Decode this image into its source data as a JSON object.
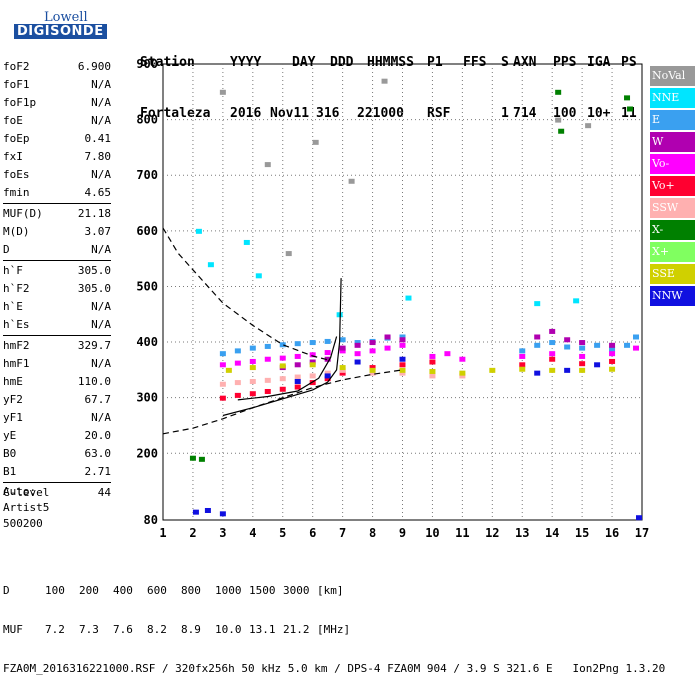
{
  "logo": {
    "line1": "Lowell",
    "line2": "DIGISONDE"
  },
  "header": {
    "labels": [
      "Station",
      "YYYY",
      "DAY",
      "DDD",
      "HHMMSS",
      "P1",
      "FFS",
      "S",
      "AXN",
      "PPS",
      "IGA",
      "PS"
    ],
    "values": [
      "Fortaleza",
      "2016",
      "Nov11",
      "316",
      "221000",
      "RSF",
      "1",
      "714",
      "100",
      "10+",
      "11"
    ]
  },
  "params": [
    {
      "key": "foF2",
      "value": "6.900"
    },
    {
      "key": "foF1",
      "value": "N/A"
    },
    {
      "key": "foF1p",
      "value": "N/A"
    },
    {
      "key": "foE",
      "value": "N/A"
    },
    {
      "key": "foEp",
      "value": "0.41"
    },
    {
      "key": "fxI",
      "value": "7.80"
    },
    {
      "key": "foEs",
      "value": "N/A"
    },
    {
      "key": "fmin",
      "value": "4.65"
    },
    {
      "key": "MUF(D)",
      "value": "21.18",
      "sep": true
    },
    {
      "key": "M(D)",
      "value": "3.07"
    },
    {
      "key": "D",
      "value": "N/A"
    },
    {
      "key": "h`F",
      "value": "305.0",
      "sep": true
    },
    {
      "key": "h`F2",
      "value": "305.0"
    },
    {
      "key": "h`E",
      "value": "N/A"
    },
    {
      "key": "h`Es",
      "value": "N/A"
    },
    {
      "key": "hmF2",
      "value": "329.7",
      "sep": true
    },
    {
      "key": "hmF1",
      "value": "N/A"
    },
    {
      "key": "hmE",
      "value": "110.0"
    },
    {
      "key": "yF2",
      "value": "67.7"
    },
    {
      "key": "yF1",
      "value": "N/A"
    },
    {
      "key": "yE",
      "value": "20.0"
    },
    {
      "key": "B0",
      "value": "63.0"
    },
    {
      "key": "B1",
      "value": "2.71"
    },
    {
      "key": "C-level",
      "value": "44",
      "sep": true
    }
  ],
  "auto": {
    "line1": "Auto:",
    "line2": "Artist5",
    "line3": "500200"
  },
  "footer": {
    "d_label": "D",
    "d_values": [
      "100",
      "200",
      "400",
      "600",
      "800",
      "1000",
      "1500",
      "3000"
    ],
    "d_unit": "[km]",
    "muf_label": "MUF",
    "muf_values": [
      "7.2",
      "7.3",
      "7.6",
      "8.2",
      "8.9",
      "10.0",
      "13.1",
      "21.2"
    ],
    "muf_unit": "[MHz]",
    "info": "FZA0M_2016316221000.RSF / 320fx256h 50 kHz 5.0 km / DPS-4 FZA0M 904 / 3.9 S 321.6 E   Ion2Png 1.3.20"
  },
  "legend": [
    {
      "label": "NoVal",
      "color": "#999999"
    },
    {
      "label": "NNE",
      "color": "#00e5ff"
    },
    {
      "label": "E",
      "color": "#3aa0f0"
    },
    {
      "label": "W",
      "color": "#b000b0"
    },
    {
      "label": "Vo-",
      "color": "#ff00ff"
    },
    {
      "label": "Vo+",
      "color": "#ff0030"
    },
    {
      "label": "SSW",
      "color": "#ffb0b0"
    },
    {
      "label": "X-",
      "color": "#008000"
    },
    {
      "label": "X+",
      "color": "#80ff60"
    },
    {
      "label": "SSE",
      "color": "#d0d000"
    },
    {
      "label": "NNW",
      "color": "#1010e0"
    }
  ],
  "chart_data": {
    "type": "scatter",
    "title": "",
    "xlabel": "",
    "ylabel": "",
    "xlim": [
      1,
      17
    ],
    "ylim": [
      80,
      900
    ],
    "x_ticks": [
      1,
      2,
      3,
      4,
      5,
      6,
      7,
      8,
      9,
      10,
      11,
      12,
      13,
      14,
      15,
      16,
      17
    ],
    "y_ticks": [
      80,
      200,
      300,
      400,
      500,
      600,
      700,
      800,
      900
    ],
    "grid": "dotted",
    "series": [
      {
        "color": "#3aa0f0",
        "points": [
          [
            3.0,
            380
          ],
          [
            3.5,
            385
          ],
          [
            4.0,
            390
          ],
          [
            4.5,
            393
          ],
          [
            5.0,
            396
          ],
          [
            5.5,
            398
          ],
          [
            6.0,
            400
          ],
          [
            6.5,
            402
          ],
          [
            7.0,
            405
          ],
          [
            7.5,
            400
          ],
          [
            8.0,
            402
          ],
          [
            8.5,
            408
          ],
          [
            9.0,
            410
          ],
          [
            13.0,
            385
          ],
          [
            13.5,
            395
          ],
          [
            14.0,
            400
          ],
          [
            14.5,
            392
          ],
          [
            15.0,
            390
          ],
          [
            15.5,
            395
          ],
          [
            16.0,
            388
          ],
          [
            16.5,
            395
          ],
          [
            16.8,
            410
          ]
        ]
      },
      {
        "color": "#ff00ff",
        "points": [
          [
            3.0,
            360
          ],
          [
            3.5,
            363
          ],
          [
            4.0,
            366
          ],
          [
            4.5,
            370
          ],
          [
            5.0,
            372
          ],
          [
            5.5,
            375
          ],
          [
            6.0,
            378
          ],
          [
            6.5,
            382
          ],
          [
            7.0,
            385
          ],
          [
            7.5,
            380
          ],
          [
            8.0,
            385
          ],
          [
            8.5,
            390
          ],
          [
            9.0,
            395
          ],
          [
            10.0,
            375
          ],
          [
            10.5,
            380
          ],
          [
            11.0,
            370
          ],
          [
            13.0,
            375
          ],
          [
            14.0,
            380
          ],
          [
            15.0,
            375
          ],
          [
            16.0,
            380
          ],
          [
            16.8,
            390
          ]
        ]
      },
      {
        "color": "#b000b0",
        "points": [
          [
            5.0,
            355
          ],
          [
            5.5,
            360
          ],
          [
            6.0,
            365
          ],
          [
            6.5,
            370
          ],
          [
            7.0,
            390
          ],
          [
            7.5,
            395
          ],
          [
            8.0,
            400
          ],
          [
            8.5,
            410
          ],
          [
            9.0,
            405
          ],
          [
            13.5,
            410
          ],
          [
            14.0,
            420
          ],
          [
            14.5,
            405
          ],
          [
            15.0,
            400
          ],
          [
            16.0,
            395
          ]
        ]
      },
      {
        "color": "#ff0030",
        "points": [
          [
            3.0,
            300
          ],
          [
            3.5,
            305
          ],
          [
            4.0,
            308
          ],
          [
            4.5,
            312
          ],
          [
            5.0,
            316
          ],
          [
            5.5,
            320
          ],
          [
            6.0,
            328
          ],
          [
            6.5,
            335
          ],
          [
            7.0,
            345
          ],
          [
            8.0,
            355
          ],
          [
            9.0,
            360
          ],
          [
            10.0,
            365
          ],
          [
            13.0,
            360
          ],
          [
            14.0,
            370
          ],
          [
            15.0,
            362
          ],
          [
            16.0,
            366
          ]
        ]
      },
      {
        "color": "#ffb0b0",
        "points": [
          [
            3.0,
            325
          ],
          [
            3.5,
            328
          ],
          [
            4.0,
            330
          ],
          [
            4.5,
            332
          ],
          [
            5.0,
            335
          ],
          [
            5.5,
            338
          ],
          [
            6.0,
            340
          ],
          [
            6.5,
            345
          ],
          [
            7.0,
            350
          ],
          [
            8.0,
            345
          ],
          [
            9.0,
            345
          ],
          [
            10.0,
            340
          ],
          [
            11.0,
            340
          ]
        ]
      },
      {
        "color": "#d0d000",
        "points": [
          [
            3.2,
            350
          ],
          [
            4.0,
            355
          ],
          [
            5.0,
            358
          ],
          [
            6.0,
            360
          ],
          [
            7.0,
            355
          ],
          [
            8.0,
            350
          ],
          [
            9.0,
            350
          ],
          [
            10.0,
            348
          ],
          [
            11.0,
            345
          ],
          [
            12.0,
            350
          ],
          [
            13.0,
            352
          ],
          [
            14.0,
            350
          ],
          [
            15.0,
            350
          ],
          [
            16.0,
            352
          ]
        ]
      },
      {
        "color": "#1010e0",
        "points": [
          [
            2.1,
            95
          ],
          [
            2.5,
            98
          ],
          [
            3.0,
            92
          ],
          [
            5.5,
            330
          ],
          [
            6.5,
            340
          ],
          [
            7.5,
            365
          ],
          [
            9.0,
            370
          ],
          [
            13.5,
            345
          ],
          [
            14.5,
            350
          ],
          [
            15.5,
            360
          ],
          [
            16.9,
            85
          ]
        ]
      },
      {
        "color": "#008000",
        "points": [
          [
            2.0,
            192
          ],
          [
            2.3,
            190
          ],
          [
            14.2,
            850
          ],
          [
            16.5,
            840
          ],
          [
            16.6,
            820
          ],
          [
            14.3,
            780
          ]
        ]
      },
      {
        "color": "#00e5ff",
        "points": [
          [
            2.2,
            600
          ],
          [
            2.6,
            540
          ],
          [
            3.8,
            580
          ],
          [
            4.2,
            520
          ],
          [
            6.9,
            450
          ],
          [
            9.2,
            480
          ],
          [
            13.5,
            470
          ],
          [
            14.8,
            475
          ]
        ]
      },
      {
        "color": "#999999",
        "points": [
          [
            3.0,
            850
          ],
          [
            4.5,
            720
          ],
          [
            5.2,
            560
          ],
          [
            6.1,
            760
          ],
          [
            7.3,
            690
          ],
          [
            8.4,
            870
          ],
          [
            14.2,
            800
          ],
          [
            15.2,
            790
          ]
        ]
      }
    ],
    "curves": [
      {
        "style": "dashed",
        "points": [
          [
            1.0,
            605
          ],
          [
            1.5,
            560
          ],
          [
            2.0,
            530
          ],
          [
            3.0,
            470
          ],
          [
            4.0,
            430
          ],
          [
            5.0,
            395
          ],
          [
            6.0,
            375
          ],
          [
            6.5,
            368
          ]
        ]
      },
      {
        "style": "dashed",
        "points": [
          [
            1.0,
            235
          ],
          [
            2.0,
            245
          ],
          [
            3.0,
            262
          ],
          [
            4.0,
            282
          ],
          [
            5.0,
            300
          ],
          [
            6.0,
            318
          ],
          [
            7.0,
            332
          ],
          [
            8.0,
            342
          ],
          [
            9.0,
            350
          ]
        ]
      },
      {
        "style": "solid",
        "points": [
          [
            3.0,
            268
          ],
          [
            4.0,
            282
          ],
          [
            5.0,
            298
          ],
          [
            6.0,
            314
          ],
          [
            6.5,
            328
          ],
          [
            6.8,
            350
          ],
          [
            6.9,
            400
          ],
          [
            6.95,
            515
          ]
        ]
      },
      {
        "style": "solid",
        "points": [
          [
            3.5,
            296
          ],
          [
            4.5,
            302
          ],
          [
            5.5,
            312
          ],
          [
            6.2,
            335
          ],
          [
            6.6,
            372
          ],
          [
            6.8,
            410
          ]
        ]
      }
    ]
  }
}
